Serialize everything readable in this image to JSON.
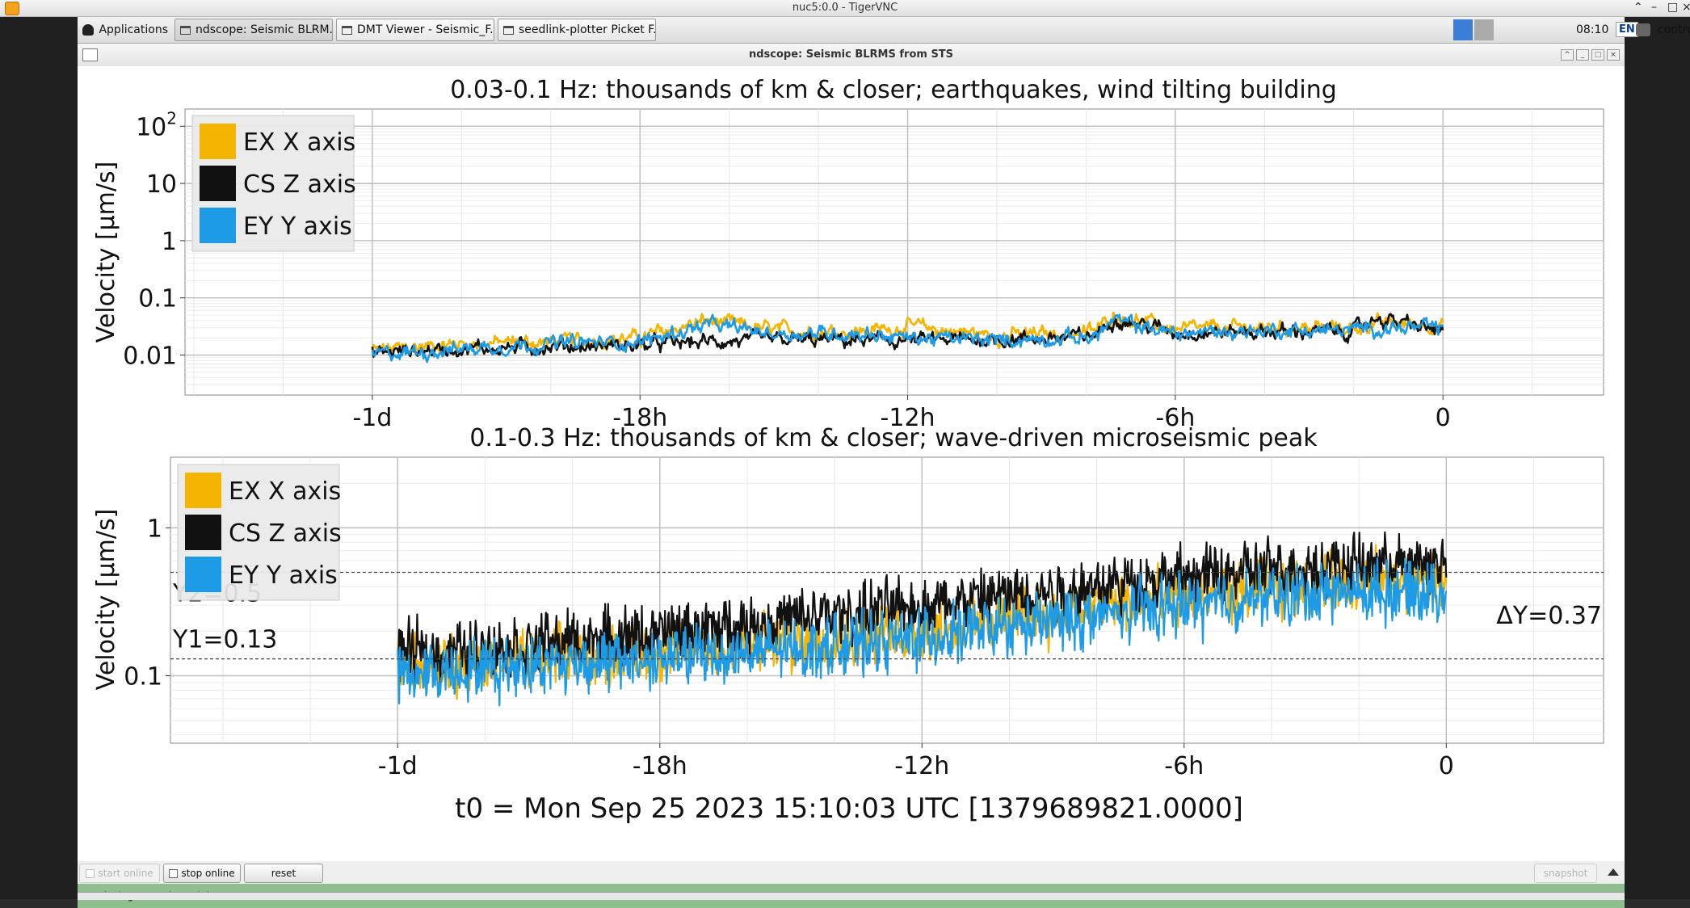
{
  "vnc": {
    "title": "nuc5:0.0 - TigerVNC"
  },
  "taskbar": {
    "apps_label": "Applications",
    "tasks": [
      {
        "label": "ndscope: Seismic BLRM..."
      },
      {
        "label": "DMT Viewer - Seismic_F..."
      },
      {
        "label": "seedlink-plotter Picket F..."
      }
    ],
    "clock": "08:10",
    "lang": "EN",
    "controls_label": "controls"
  },
  "window": {
    "title": "ndscope: Seismic BLRMS from STS"
  },
  "buttons": {
    "start_online": "start online",
    "stop_online": "stop online",
    "reset": "reset",
    "snapshot": "snapshot"
  },
  "status": {
    "text": "Retrieving second trend data..."
  },
  "colors": {
    "ex": "#f5b400",
    "cs": "#111111",
    "ey": "#1e9be6"
  },
  "chart_data": [
    {
      "type": "line",
      "title": "0.03-0.1 Hz: thousands of km & closer; earthquakes, wind tilting building",
      "ylabel": "Velocity [µm/s]",
      "yscale": "log",
      "ytick_labels": [
        "0.01",
        "0.1",
        "1",
        "10",
        "10²"
      ],
      "xtick_labels": [
        "-1d",
        "-18h",
        "-12h",
        "-6h",
        "0"
      ],
      "xlim_hours": [
        -28.2,
        3.6
      ],
      "ylim": [
        0.002,
        200
      ],
      "grid": true,
      "legend": "top-left",
      "series": [
        {
          "name": "EX X axis",
          "key": "ex",
          "x_hours": [
            -24,
            -22,
            -20,
            -18,
            -16.5,
            -15,
            -13,
            -12,
            -10,
            -8.5,
            -7.8,
            -7.4,
            -6,
            -4,
            -2,
            -1.5,
            0
          ],
          "y": [
            0.012,
            0.016,
            0.017,
            0.02,
            0.04,
            0.027,
            0.026,
            0.032,
            0.022,
            0.024,
            0.026,
            0.05,
            0.028,
            0.03,
            0.03,
            0.035,
            0.034
          ]
        },
        {
          "name": "CS Z axis",
          "key": "cs",
          "x_hours": [
            -24,
            -22,
            -20,
            -18,
            -16.5,
            -15,
            -13,
            -12,
            -10,
            -8.5,
            -7.8,
            -7.4,
            -6,
            -4,
            -2,
            -1.5,
            0
          ],
          "y": [
            0.011,
            0.013,
            0.014,
            0.015,
            0.017,
            0.018,
            0.018,
            0.018,
            0.019,
            0.02,
            0.022,
            0.045,
            0.025,
            0.026,
            0.026,
            0.045,
            0.026
          ]
        },
        {
          "name": "EY Y axis",
          "key": "ey",
          "x_hours": [
            -24,
            -22,
            -20,
            -18,
            -16.5,
            -15,
            -13,
            -12,
            -10,
            -8.5,
            -7.8,
            -7.4,
            -6,
            -4,
            -2,
            -1.5,
            0
          ],
          "y": [
            0.01,
            0.013,
            0.016,
            0.017,
            0.034,
            0.024,
            0.024,
            0.02,
            0.018,
            0.02,
            0.021,
            0.04,
            0.024,
            0.027,
            0.027,
            0.03,
            0.03
          ]
        }
      ]
    },
    {
      "type": "line",
      "title": "0.1-0.3 Hz: thousands of km & closer; wave-driven microseismic peak",
      "ylabel": "Velocity [µm/s]",
      "yscale": "log",
      "ytick_labels": [
        "0.1",
        "1"
      ],
      "xtick_labels": [
        "-1d",
        "-18h",
        "-12h",
        "-6h",
        "0"
      ],
      "xlim_hours": [
        -29.2,
        3.6
      ],
      "ylim": [
        0.035,
        3
      ],
      "grid": true,
      "legend": "top-left",
      "cursors": {
        "y1": 0.13,
        "y2": 0.5,
        "y1_label": "Y1=0.13",
        "y2_label": "Y2=0.5",
        "dy_label": "ΔY=0.37"
      },
      "series": [
        {
          "name": "EX X axis",
          "key": "ex",
          "x_hours": [
            -24,
            -21,
            -18,
            -15,
            -12,
            -9,
            -6,
            -3,
            0
          ],
          "y": [
            0.12,
            0.13,
            0.15,
            0.17,
            0.2,
            0.27,
            0.34,
            0.42,
            0.45
          ]
        },
        {
          "name": "CS Z axis",
          "key": "cs",
          "x_hours": [
            -24,
            -21,
            -18,
            -15,
            -12,
            -9,
            -6,
            -3,
            0
          ],
          "y": [
            0.14,
            0.16,
            0.19,
            0.24,
            0.3,
            0.38,
            0.46,
            0.55,
            0.58
          ]
        },
        {
          "name": "EY Y axis",
          "key": "ey",
          "x_hours": [
            -24,
            -21,
            -18,
            -15,
            -12,
            -9,
            -6,
            -3,
            0
          ],
          "y": [
            0.1,
            0.12,
            0.13,
            0.15,
            0.18,
            0.23,
            0.3,
            0.36,
            0.38
          ]
        }
      ]
    }
  ],
  "t0_label": "t0 = Mon Sep 25 2023 15:10:03 UTC [1379689821.0000]"
}
